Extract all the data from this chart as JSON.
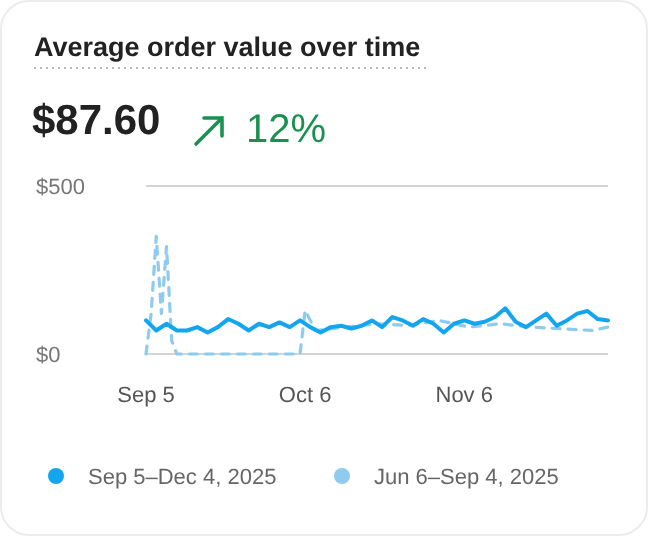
{
  "chart_data": {
    "type": "line",
    "title": "Average order value over time",
    "annotations": [
      "$87.60",
      "12%"
    ],
    "x": [
      "2025-09-05",
      "2025-09-07",
      "2025-09-09",
      "2025-09-11",
      "2025-09-13",
      "2025-09-15",
      "2025-09-17",
      "2025-09-19",
      "2025-09-21",
      "2025-09-23",
      "2025-09-25",
      "2025-09-27",
      "2025-09-29",
      "2025-10-01",
      "2025-10-03",
      "2025-10-05",
      "2025-10-07",
      "2025-10-09",
      "2025-10-11",
      "2025-10-13",
      "2025-10-15",
      "2025-10-17",
      "2025-10-19",
      "2025-10-21",
      "2025-10-23",
      "2025-10-25",
      "2025-10-27",
      "2025-10-29",
      "2025-10-31",
      "2025-11-02",
      "2025-11-04",
      "2025-11-06",
      "2025-11-08",
      "2025-11-10",
      "2025-11-12",
      "2025-11-14",
      "2025-11-16",
      "2025-11-18",
      "2025-11-20",
      "2025-11-22",
      "2025-11-24",
      "2025-11-26",
      "2025-11-28",
      "2025-11-30",
      "2025-12-02",
      "2025-12-04"
    ],
    "series": [
      {
        "name": "Sep 5–Dec 4, 2025",
        "color": "#14a5ef",
        "line_style": "solid",
        "values": [
          100,
          70,
          90,
          70,
          70,
          80,
          64,
          80,
          104,
          90,
          70,
          90,
          80,
          94,
          80,
          100,
          80,
          64,
          80,
          84,
          76,
          84,
          100,
          80,
          110,
          100,
          84,
          104,
          90,
          64,
          90,
          100,
          90,
          96,
          110,
          136,
          96,
          80,
          100,
          120,
          84,
          100,
          120,
          128,
          104,
          100
        ]
      },
      {
        "name": "Jun 6–Sep 4, 2025",
        "color": "#8ecbee",
        "line_style": "dashed",
        "x": [
          "2025-09-05",
          "2025-09-06",
          "2025-09-07",
          "2025-09-08",
          "2025-09-09",
          "2025-09-10",
          "2025-09-11",
          "2025-10-05",
          "2025-10-06",
          "2025-10-08",
          "2025-10-14",
          "2025-10-20",
          "2025-10-26",
          "2025-11-01",
          "2025-11-07",
          "2025-11-13",
          "2025-11-19",
          "2025-11-25",
          "2025-12-01",
          "2025-12-04"
        ],
        "values": [
          0,
          120,
          350,
          120,
          320,
          40,
          0,
          0,
          130,
          70,
          80,
          90,
          85,
          100,
          80,
          90,
          80,
          75,
          70,
          80
        ]
      }
    ],
    "ylim": [
      0,
      500
    ],
    "yticks": [
      {
        "value": 0,
        "label": "$0"
      },
      {
        "value": 500,
        "label": "$500"
      }
    ],
    "xlim": [
      "2025-09-05",
      "2025-12-04"
    ],
    "xticks": [
      {
        "value": "2025-09-05",
        "label": "Sep 5"
      },
      {
        "value": "2025-10-06",
        "label": "Oct 6"
      },
      {
        "value": "2025-11-06",
        "label": "Nov 6"
      }
    ],
    "legend": "bottom",
    "marker": "none"
  }
}
